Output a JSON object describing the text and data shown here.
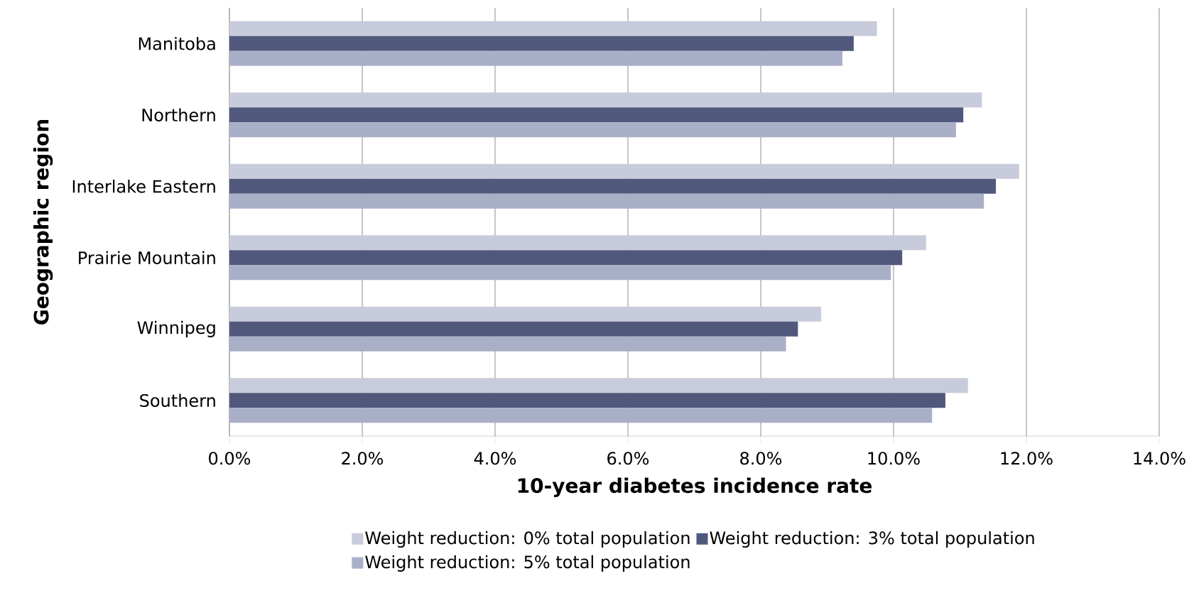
{
  "chart_data": {
    "type": "bar",
    "orientation": "horizontal",
    "categories": [
      "Manitoba",
      "Northern",
      "Interlake Eastern",
      "Prairie Mountain",
      "Winnipeg",
      "Southern"
    ],
    "series": [
      {
        "name": "Weight reduction: 0% total population",
        "color": "#c8cbdb",
        "values": [
          9.75,
          11.33,
          11.89,
          10.49,
          8.91,
          11.12
        ]
      },
      {
        "name": "Weight reduction: 3% total population",
        "color": "#50597c",
        "values": [
          9.4,
          11.05,
          11.54,
          10.13,
          8.56,
          10.78
        ]
      },
      {
        "name": "Weight reduction: 5% total population",
        "color": "#aaafc8",
        "values": [
          9.23,
          10.94,
          11.36,
          9.96,
          8.38,
          10.58
        ]
      }
    ],
    "xlabel": "10-year  diabetes incidence rate",
    "ylabel": "Geographic region",
    "xlim": [
      0,
      14
    ],
    "xticks": [
      {
        "value": 0,
        "label": "0.0%"
      },
      {
        "value": 2,
        "label": "2.0%"
      },
      {
        "value": 4,
        "label": "4.0%"
      },
      {
        "value": 6,
        "label": "6.0%"
      },
      {
        "value": 8,
        "label": "8.0%"
      },
      {
        "value": 10,
        "label": "10.0%"
      },
      {
        "value": 12,
        "label": "12.0%"
      },
      {
        "value": 14,
        "label": "14.0%"
      }
    ],
    "grid": "x",
    "legend": "bottom"
  }
}
